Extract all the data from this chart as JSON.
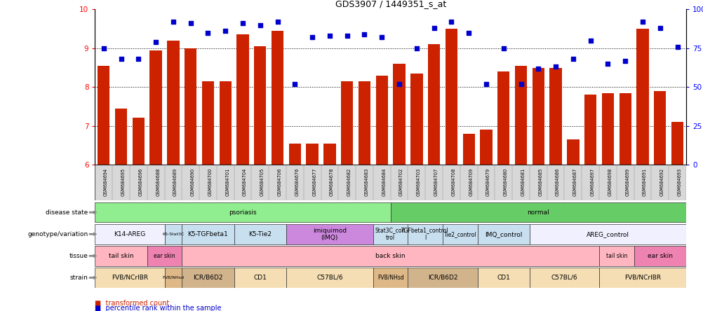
{
  "title": "GDS3907 / 1449351_s_at",
  "samples": [
    "GSM684694",
    "GSM684695",
    "GSM684696",
    "GSM684688",
    "GSM684689",
    "GSM684690",
    "GSM684700",
    "GSM684701",
    "GSM684704",
    "GSM684705",
    "GSM684706",
    "GSM684676",
    "GSM684677",
    "GSM684678",
    "GSM684682",
    "GSM684683",
    "GSM684684",
    "GSM684702",
    "GSM684703",
    "GSM684707",
    "GSM684708",
    "GSM684709",
    "GSM684679",
    "GSM684680",
    "GSM684681",
    "GSM684685",
    "GSM684686",
    "GSM684687",
    "GSM684697",
    "GSM684698",
    "GSM684699",
    "GSM684691",
    "GSM684692",
    "GSM684693"
  ],
  "bar_values": [
    8.55,
    7.45,
    7.22,
    8.95,
    9.2,
    9.0,
    8.15,
    8.15,
    9.35,
    9.05,
    9.45,
    6.55,
    6.55,
    6.55,
    8.15,
    8.15,
    8.3,
    8.6,
    8.35,
    9.1,
    9.5,
    6.8,
    6.9,
    8.4,
    8.55,
    8.5,
    8.5,
    6.65,
    7.8,
    7.85,
    7.85,
    9.5,
    7.9,
    7.1
  ],
  "dot_values_pct": [
    75,
    68,
    68,
    79,
    92,
    91,
    85,
    86,
    91,
    90,
    92,
    52,
    82,
    83,
    83,
    84,
    82,
    52,
    75,
    88,
    92,
    85,
    52,
    75,
    52,
    62,
    63,
    68,
    80,
    65,
    67,
    92,
    88,
    76
  ],
  "ylim_left": [
    6,
    10
  ],
  "ylim_right": [
    0,
    100
  ],
  "yticks_left": [
    6,
    7,
    8,
    9,
    10
  ],
  "yticks_right": [
    0,
    25,
    50,
    75,
    100
  ],
  "ytick_right_labels": [
    "0",
    "25",
    "50",
    "75",
    "100%"
  ],
  "bar_color": "#cc2200",
  "dot_color": "#0000cc",
  "disease_state_groups": [
    {
      "label": "psoriasis",
      "start": 0,
      "end": 17,
      "color": "#90ee90"
    },
    {
      "label": "normal",
      "start": 17,
      "end": 34,
      "color": "#66cc66"
    }
  ],
  "genotype_groups": [
    {
      "label": "K14-AREG",
      "start": 0,
      "end": 4,
      "color": "#f0f0ff"
    },
    {
      "label": "K5-Stat3C",
      "start": 4,
      "end": 5,
      "color": "#c8dff0"
    },
    {
      "label": "K5-TGFbeta1",
      "start": 5,
      "end": 8,
      "color": "#c8dff0"
    },
    {
      "label": "K5-Tie2",
      "start": 8,
      "end": 11,
      "color": "#c8dff0"
    },
    {
      "label": "imiquimod\n(IMQ)",
      "start": 11,
      "end": 16,
      "color": "#cc88dd"
    },
    {
      "label": "Stat3C_con\ntrol",
      "start": 16,
      "end": 18,
      "color": "#c8dff0"
    },
    {
      "label": "TGFbeta1_control\nl",
      "start": 18,
      "end": 20,
      "color": "#c8dff0"
    },
    {
      "label": "Tie2_control",
      "start": 20,
      "end": 22,
      "color": "#c8dff0"
    },
    {
      "label": "IMQ_control",
      "start": 22,
      "end": 25,
      "color": "#c8dff0"
    },
    {
      "label": "AREG_control",
      "start": 25,
      "end": 34,
      "color": "#f0f0ff"
    }
  ],
  "tissue_groups": [
    {
      "label": "tail skin",
      "start": 0,
      "end": 3,
      "color": "#ffb6c1"
    },
    {
      "label": "ear skin",
      "start": 3,
      "end": 5,
      "color": "#ee82b0"
    },
    {
      "label": "back skin",
      "start": 5,
      "end": 29,
      "color": "#ffb6c1"
    },
    {
      "label": "tail skin",
      "start": 29,
      "end": 31,
      "color": "#ffb6c1"
    },
    {
      "label": "ear skin",
      "start": 31,
      "end": 34,
      "color": "#ee82b0"
    }
  ],
  "strain_groups": [
    {
      "label": "FVB/NCrIBR",
      "start": 0,
      "end": 4,
      "color": "#f5deb3"
    },
    {
      "label": "FVB/NHsd",
      "start": 4,
      "end": 5,
      "color": "#deb887"
    },
    {
      "label": "ICR/B6D2",
      "start": 5,
      "end": 8,
      "color": "#d2b48c"
    },
    {
      "label": "CD1",
      "start": 8,
      "end": 11,
      "color": "#f5deb3"
    },
    {
      "label": "C57BL/6",
      "start": 11,
      "end": 16,
      "color": "#f5deb3"
    },
    {
      "label": "FVB/NHsd",
      "start": 16,
      "end": 18,
      "color": "#deb887"
    },
    {
      "label": "ICR/B6D2",
      "start": 18,
      "end": 22,
      "color": "#d2b48c"
    },
    {
      "label": "CD1",
      "start": 22,
      "end": 25,
      "color": "#f5deb3"
    },
    {
      "label": "C57BL/6",
      "start": 25,
      "end": 29,
      "color": "#f5deb3"
    },
    {
      "label": "FVB/NCrIBR",
      "start": 29,
      "end": 34,
      "color": "#f5deb3"
    }
  ],
  "row_labels": [
    "disease state",
    "genotype/variation",
    "tissue",
    "strain"
  ],
  "sample_bg_color": "#d8d8d8",
  "legend_bar_label": "transformed count",
  "legend_dot_label": "percentile rank within the sample",
  "legend_bar_color": "#cc2200",
  "legend_dot_color": "#0000cc"
}
